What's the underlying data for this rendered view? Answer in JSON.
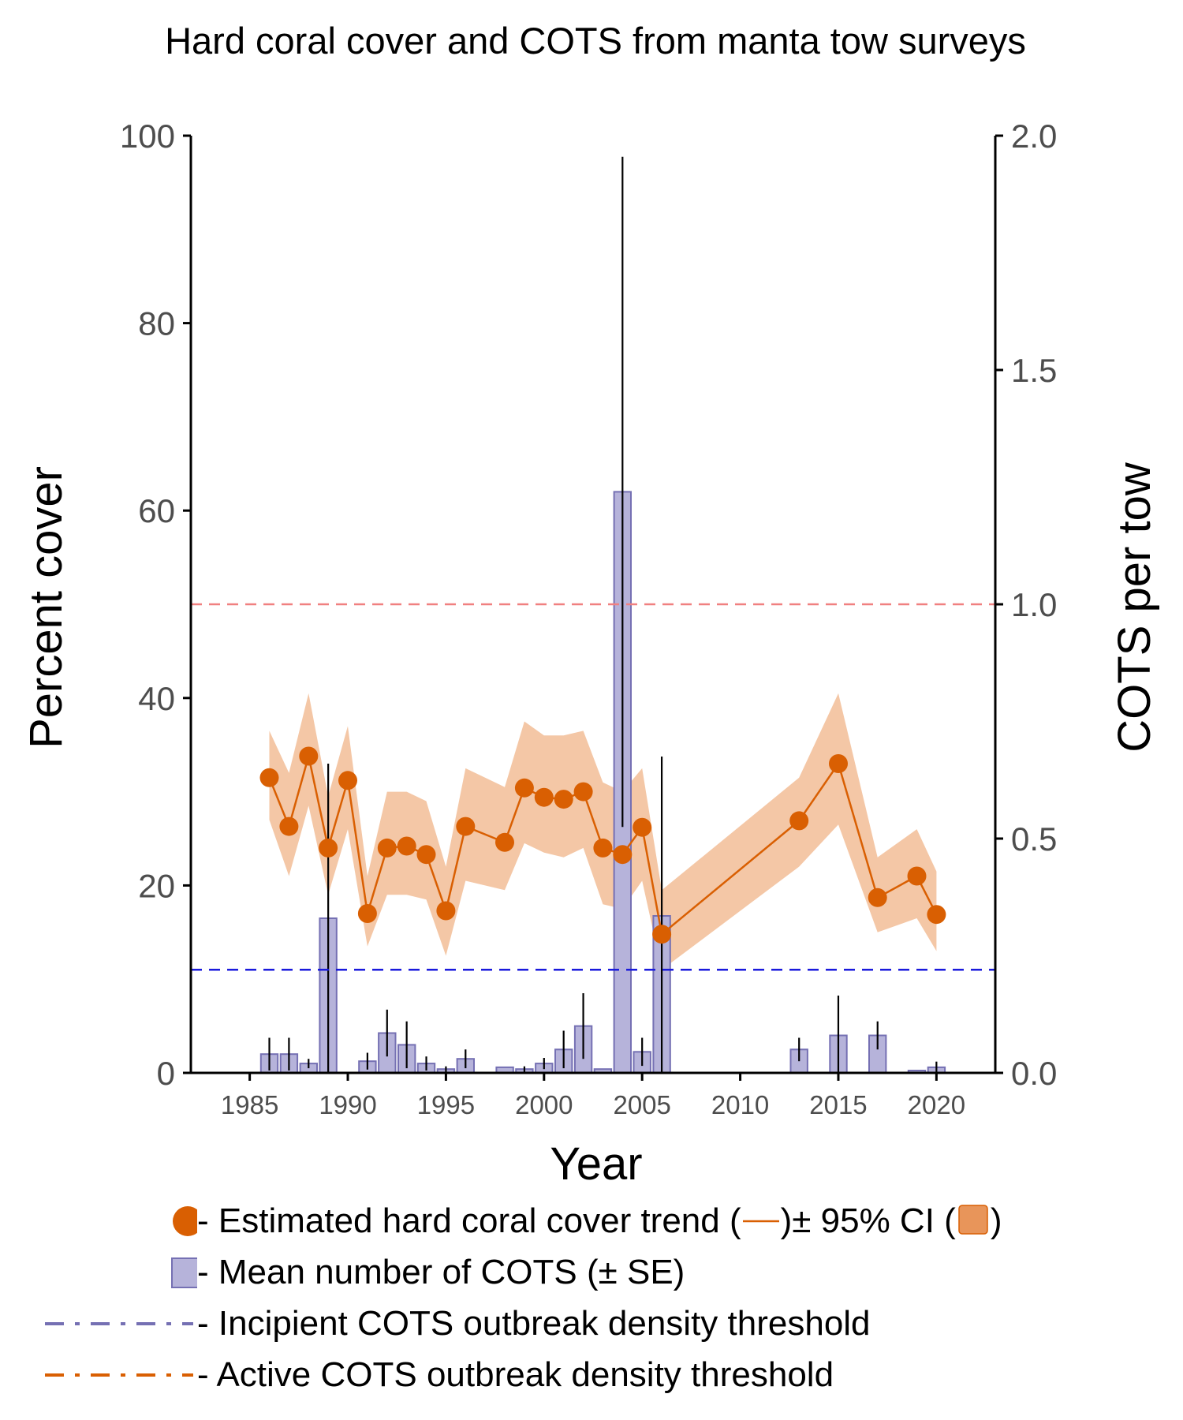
{
  "chart_data": {
    "type": "bar+line",
    "title": "Hard coral cover and COTS from manta tow surveys",
    "xlabel": "Year",
    "ylabel_left": "Percent cover",
    "ylabel_right": "COTS per tow",
    "xlim": [
      1982,
      2023
    ],
    "ylim_left": [
      0,
      100
    ],
    "ylim_right": [
      0,
      2.0
    ],
    "x_ticks": [
      1985,
      1990,
      1995,
      2000,
      2005,
      2010,
      2015,
      2020
    ],
    "y_ticks_left": [
      0,
      20,
      40,
      60,
      80,
      100
    ],
    "y_ticks_right": [
      "0.0",
      "0.5",
      "1.0",
      "1.5",
      "2.0"
    ],
    "grid": false,
    "coral_cover": [
      {
        "year": 1986,
        "value": 31.5,
        "lo": 27.0,
        "hi": 36.5
      },
      {
        "year": 1987,
        "value": 26.3,
        "lo": 21.0,
        "hi": 32.0
      },
      {
        "year": 1988,
        "value": 33.8,
        "lo": 28.5,
        "hi": 40.5
      },
      {
        "year": 1989,
        "value": 24.0,
        "lo": 19.0,
        "hi": 29.5
      },
      {
        "year": 1990,
        "value": 31.2,
        "lo": 26.0,
        "hi": 37.0
      },
      {
        "year": 1991,
        "value": 17.0,
        "lo": 13.5,
        "hi": 21.0
      },
      {
        "year": 1992,
        "value": 24.0,
        "lo": 19.0,
        "hi": 30.0
      },
      {
        "year": 1993,
        "value": 24.2,
        "lo": 19.0,
        "hi": 30.0
      },
      {
        "year": 1994,
        "value": 23.3,
        "lo": 18.5,
        "hi": 29.0
      },
      {
        "year": 1995,
        "value": 17.3,
        "lo": 12.5,
        "hi": 22.0
      },
      {
        "year": 1996,
        "value": 26.3,
        "lo": 20.5,
        "hi": 32.5
      },
      {
        "year": 1998,
        "value": 24.6,
        "lo": 19.5,
        "hi": 30.5
      },
      {
        "year": 1999,
        "value": 30.4,
        "lo": 24.5,
        "hi": 37.5
      },
      {
        "year": 2000,
        "value": 29.4,
        "lo": 23.5,
        "hi": 36.0
      },
      {
        "year": 2001,
        "value": 29.2,
        "lo": 23.0,
        "hi": 36.0
      },
      {
        "year": 2002,
        "value": 30.0,
        "lo": 24.0,
        "hi": 36.5
      },
      {
        "year": 2003,
        "value": 24.0,
        "lo": 18.0,
        "hi": 31.0
      },
      {
        "year": 2004,
        "value": 23.3,
        "lo": 17.5,
        "hi": 30.0
      },
      {
        "year": 2005,
        "value": 26.2,
        "lo": 20.5,
        "hi": 32.5
      },
      {
        "year": 2006,
        "value": 14.8,
        "lo": 11.0,
        "hi": 19.5
      },
      {
        "year": 2013,
        "value": 26.9,
        "lo": 22.0,
        "hi": 31.5
      },
      {
        "year": 2015,
        "value": 33.0,
        "lo": 26.5,
        "hi": 40.5
      },
      {
        "year": 2017,
        "value": 18.7,
        "lo": 15.0,
        "hi": 23.0
      },
      {
        "year": 2019,
        "value": 21.0,
        "lo": 16.5,
        "hi": 26.0
      },
      {
        "year": 2020,
        "value": 16.9,
        "lo": 13.0,
        "hi": 21.5
      }
    ],
    "cots_per_tow": [
      {
        "year": 1986,
        "value": 0.04,
        "se": 0.035
      },
      {
        "year": 1987,
        "value": 0.04,
        "se": 0.035
      },
      {
        "year": 1988,
        "value": 0.02,
        "se": 0.01
      },
      {
        "year": 1989,
        "value": 0.33,
        "se": 0.33
      },
      {
        "year": 1991,
        "value": 0.025,
        "se": 0.018
      },
      {
        "year": 1992,
        "value": 0.085,
        "se": 0.05
      },
      {
        "year": 1993,
        "value": 0.06,
        "se": 0.05
      },
      {
        "year": 1994,
        "value": 0.02,
        "se": 0.015
      },
      {
        "year": 1995,
        "value": 0.008,
        "se": 0.006
      },
      {
        "year": 1996,
        "value": 0.03,
        "se": 0.02
      },
      {
        "year": 1998,
        "value": 0.012,
        "se": 0.0
      },
      {
        "year": 1999,
        "value": 0.008,
        "se": 0.006
      },
      {
        "year": 2000,
        "value": 0.02,
        "se": 0.012
      },
      {
        "year": 2001,
        "value": 0.05,
        "se": 0.04
      },
      {
        "year": 2002,
        "value": 0.1,
        "se": 0.07
      },
      {
        "year": 2003,
        "value": 0.008,
        "se": 0.0
      },
      {
        "year": 2004,
        "value": 1.24,
        "se": 0.715
      },
      {
        "year": 2005,
        "value": 0.045,
        "se": 0.03
      },
      {
        "year": 2006,
        "value": 0.335,
        "se": 0.34
      },
      {
        "year": 2013,
        "value": 0.05,
        "se": 0.025
      },
      {
        "year": 2015,
        "value": 0.08,
        "se": 0.085
      },
      {
        "year": 2017,
        "value": 0.08,
        "se": 0.03
      },
      {
        "year": 2019,
        "value": 0.005,
        "se": 0.0
      },
      {
        "year": 2020,
        "value": 0.012,
        "se": 0.012
      }
    ],
    "thresholds": [
      {
        "axis": "right",
        "value": 0.22,
        "color": "#1a1adc"
      },
      {
        "axis": "right",
        "value": 1.0,
        "color": "#f08080"
      }
    ],
    "colors": {
      "coral": "#d95f02",
      "ci_band": "#f4c7a6",
      "cots_fill": "#b6b3da",
      "cots_stroke": "#7570b3",
      "legend_dash_purple": "#7570b3",
      "legend_dash_orange": "#d95f02"
    }
  },
  "legend": {
    "coral_text": "- Estimated hard coral cover trend (",
    "coral_mid": ")± 95% CI (",
    "coral_end": ")",
    "cots_text": "- Mean number of COTS (± SE)",
    "incipient_text": "- Incipient COTS outbreak density threshold",
    "active_text": "- Active COTS outbreak density threshold"
  }
}
